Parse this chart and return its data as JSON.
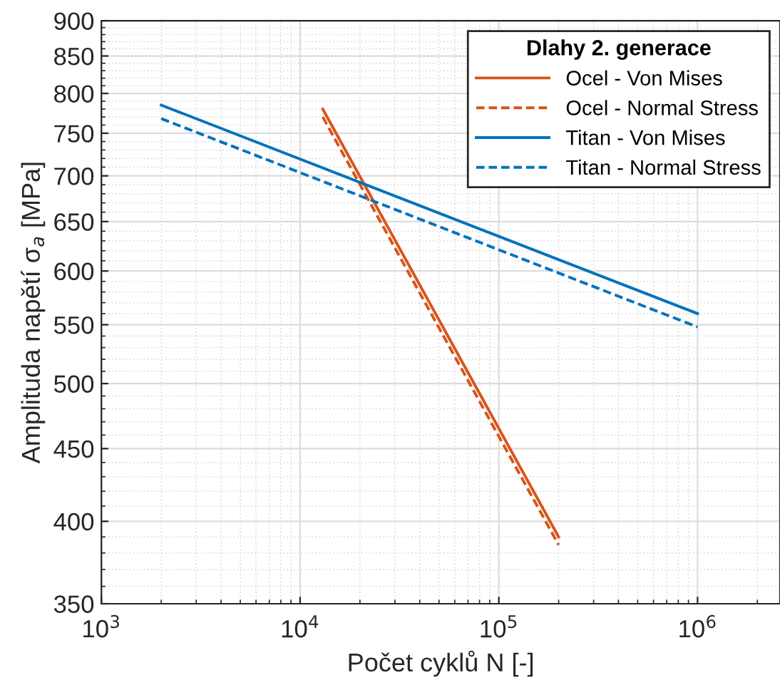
{
  "chart_data": {
    "type": "line",
    "xlabel": "Počet cyklů N [-]",
    "ylabel": "Amplituda napětí σ$_{a}$ [MPa]",
    "legend_title": "Dlahy 2. generace",
    "series": [
      {
        "name": "Ocel - Von Mises",
        "color": "#d95319",
        "line_style": "solid",
        "x": [
          13000,
          200000
        ],
        "values": [
          780,
          390
        ]
      },
      {
        "name": "Ocel - Normal Stress",
        "color": "#d95319",
        "line_style": "dashed",
        "x": [
          13000,
          200000
        ],
        "values": [
          770,
          385
        ]
      },
      {
        "name": "Titan - Von Mises",
        "color": "#0072bd",
        "line_style": "solid",
        "x": [
          2000,
          1000000
        ],
        "values": [
          785,
          560
        ]
      },
      {
        "name": "Titan - Normal Stress",
        "color": "#0072bd",
        "line_style": "dashed",
        "x": [
          2000,
          1000000
        ],
        "values": [
          768,
          548
        ]
      }
    ],
    "log": "xy",
    "xlim": [
      1000,
      2600000
    ],
    "ylim": [
      350,
      900
    ],
    "xticks": [
      {
        "value": 1000,
        "label": "10$^{3}$"
      },
      {
        "value": 10000,
        "label": "10$^{4}$"
      },
      {
        "value": 100000,
        "label": "10$^{5}$"
      },
      {
        "value": 1000000,
        "label": "10$^{6}$"
      }
    ],
    "yticks": [
      350,
      400,
      450,
      500,
      550,
      600,
      650,
      700,
      750,
      800,
      850,
      900
    ],
    "grid": true,
    "legend": "top right"
  }
}
